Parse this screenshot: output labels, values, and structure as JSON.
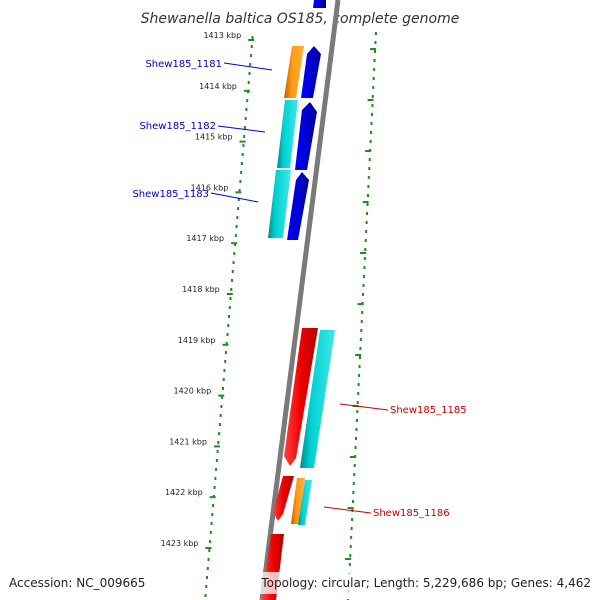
{
  "title": "Shewanella baltica OS185, complete genome",
  "footer": {
    "accession": "Accession: NC_009665",
    "topology": "Topology: circular; Length: 5,229,686 bp; Genes: 4,462"
  },
  "kbp_labels": [
    "1413 kbp",
    "1414 kbp",
    "1415 kbp",
    "1416 kbp",
    "1417 kbp",
    "1418 kbp",
    "1419 kbp",
    "1420 kbp",
    "1421 kbp",
    "1422 kbp",
    "1423 kbp"
  ],
  "genes_left": [
    {
      "label": "Shew185_1181",
      "color": "#0000cc"
    },
    {
      "label": "Shew185_1182",
      "color": "#0000cc"
    },
    {
      "label": "Shew185_1183",
      "color": "#0000cc"
    }
  ],
  "genes_right": [
    {
      "label": "Shew185_1185",
      "color": "#cc0000"
    },
    {
      "label": "Shew185_1186",
      "color": "#cc0000"
    }
  ],
  "colors": {
    "backbone": "#7a7a7a",
    "forward_gene": "#0000ee",
    "reverse_gene": "#ee0000",
    "cyan_feature": "#00c8c8",
    "orange_feature": "#ff8c00",
    "tick_green": "#228b22"
  }
}
